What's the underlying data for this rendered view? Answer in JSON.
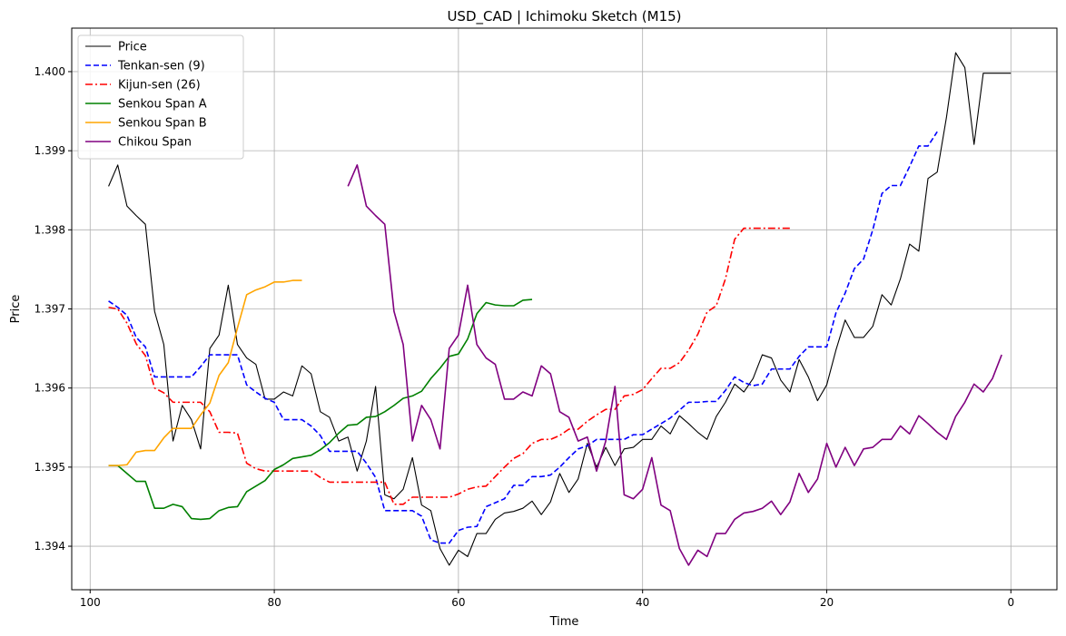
{
  "chart_data": {
    "type": "line",
    "title": "USD_CAD | Ichimoku Sketch (M15)",
    "xlabel": "Time",
    "ylabel": "Price",
    "xlim": [
      102,
      -5
    ],
    "ylim": [
      1.39345,
      1.40055
    ],
    "x_ticks": [
      100,
      80,
      60,
      40,
      20,
      0
    ],
    "y_ticks": [
      1.394,
      1.395,
      1.396,
      1.397,
      1.398,
      1.399,
      1.4
    ],
    "grid": true,
    "legend_position": "upper-left",
    "series": [
      {
        "name": "Price",
        "color": "#000000",
        "style": "solid",
        "x_start": 98,
        "x_step": -1,
        "values": [
          1.39855,
          1.39882,
          1.3983,
          1.39818,
          1.39807,
          1.39697,
          1.39655,
          1.39533,
          1.39578,
          1.3956,
          1.39523,
          1.3965,
          1.39667,
          1.3973,
          1.39655,
          1.39638,
          1.3963,
          1.39586,
          1.39586,
          1.39595,
          1.3959,
          1.39628,
          1.39618,
          1.3957,
          1.39563,
          1.39533,
          1.39538,
          1.39495,
          1.39533,
          1.39602,
          1.39465,
          1.3946,
          1.39472,
          1.39512,
          1.39452,
          1.39445,
          1.39397,
          1.39376,
          1.39395,
          1.39387,
          1.39416,
          1.39416,
          1.39434,
          1.39442,
          1.39444,
          1.39448,
          1.39457,
          1.3944,
          1.39456,
          1.39492,
          1.39468,
          1.39485,
          1.3953,
          1.395,
          1.39525,
          1.39502,
          1.39523,
          1.39525,
          1.39535,
          1.39535,
          1.39552,
          1.39542,
          1.39565,
          1.39555,
          1.39544,
          1.39535,
          1.39564,
          1.39582,
          1.39605,
          1.39595,
          1.39612,
          1.39642,
          1.39638,
          1.3961,
          1.39595,
          1.39636,
          1.39614,
          1.39584,
          1.39604,
          1.39648,
          1.39686,
          1.39664,
          1.39664,
          1.39678,
          1.39718,
          1.39705,
          1.39738,
          1.39782,
          1.39773,
          1.39865,
          1.39873,
          1.39942,
          1.40024,
          1.40005,
          1.39908,
          1.39998,
          1.39998,
          1.39998,
          1.39998
        ]
      },
      {
        "name": "Tenkan-sen (9)",
        "color": "#0000ff",
        "style": "dashed",
        "x_start": 98,
        "x_step": -1,
        "values": [
          1.3971,
          1.39702,
          1.39692,
          1.39664,
          1.39652,
          1.39614,
          1.39614,
          1.39614,
          1.39614,
          1.39614,
          1.39627,
          1.39642,
          1.39642,
          1.39642,
          1.39642,
          1.39604,
          1.39595,
          1.39587,
          1.39582,
          1.3956,
          1.3956,
          1.3956,
          1.39552,
          1.3954,
          1.3952,
          1.3952,
          1.3952,
          1.3952,
          1.39505,
          1.39487,
          1.39445,
          1.39445,
          1.39445,
          1.39445,
          1.39438,
          1.39408,
          1.39404,
          1.39404,
          1.3942,
          1.39424,
          1.39425,
          1.3945,
          1.39455,
          1.3946,
          1.39477,
          1.39477,
          1.39488,
          1.39488,
          1.3949,
          1.395,
          1.39512,
          1.39523,
          1.39527,
          1.39535,
          1.39535,
          1.39535,
          1.39535,
          1.39541,
          1.39541,
          1.39548,
          1.39555,
          1.39562,
          1.39572,
          1.39582,
          1.39582,
          1.39583,
          1.39583,
          1.39597,
          1.39614,
          1.39607,
          1.39603,
          1.39605,
          1.39624,
          1.39624,
          1.39624,
          1.3964,
          1.39652,
          1.39652,
          1.39652,
          1.39695,
          1.3972,
          1.39751,
          1.39763,
          1.398,
          1.39846,
          1.39856,
          1.39856,
          1.3988,
          1.39906,
          1.39906,
          1.39924
        ]
      },
      {
        "name": "Kijun-sen (26)",
        "color": "#ff0000",
        "style": "dashdot",
        "x_start": 98,
        "x_step": -1,
        "values": [
          1.39702,
          1.397,
          1.39682,
          1.39656,
          1.39641,
          1.396,
          1.39594,
          1.39582,
          1.39582,
          1.39582,
          1.39582,
          1.3957,
          1.39544,
          1.39544,
          1.39543,
          1.39505,
          1.39498,
          1.39495,
          1.39495,
          1.39495,
          1.39495,
          1.39495,
          1.39495,
          1.39487,
          1.39481,
          1.39481,
          1.39481,
          1.39481,
          1.39481,
          1.39481,
          1.39481,
          1.39453,
          1.39453,
          1.39462,
          1.39462,
          1.39462,
          1.39462,
          1.39462,
          1.39466,
          1.39472,
          1.39475,
          1.39476,
          1.39488,
          1.395,
          1.39511,
          1.39517,
          1.3953,
          1.39535,
          1.39535,
          1.3954,
          1.39548,
          1.39548,
          1.39558,
          1.39566,
          1.39573,
          1.39573,
          1.3959,
          1.39592,
          1.39598,
          1.39612,
          1.39625,
          1.39625,
          1.39632,
          1.39648,
          1.39668,
          1.39696,
          1.39704,
          1.39738,
          1.39788,
          1.39802,
          1.39802,
          1.39802,
          1.39802,
          1.39802,
          1.39802
        ]
      },
      {
        "name": "Senkou Span A",
        "color": "#008000",
        "style": "solid",
        "x_start": 98,
        "x_step": -1,
        "values": [
          1.39502,
          1.39502,
          1.39492,
          1.39482,
          1.39482,
          1.39448,
          1.39448,
          1.39453,
          1.3945,
          1.39435,
          1.39434,
          1.39435,
          1.39445,
          1.39449,
          1.3945,
          1.39469,
          1.39476,
          1.39483,
          1.39497,
          1.39503,
          1.39511,
          1.39513,
          1.39515,
          1.39522,
          1.39531,
          1.39543,
          1.39553,
          1.39554,
          1.39563,
          1.39564,
          1.3957,
          1.39578,
          1.39587,
          1.3959,
          1.39596,
          1.39612,
          1.39625,
          1.3964,
          1.39643,
          1.39662,
          1.39694,
          1.39708,
          1.39705,
          1.39704,
          1.39704,
          1.39711,
          1.39712
        ]
      },
      {
        "name": "Senkou Span B",
        "color": "#ffa500",
        "style": "solid",
        "x_start": 98,
        "x_step": -1,
        "values": [
          1.39502,
          1.39502,
          1.39503,
          1.39519,
          1.39521,
          1.39521,
          1.39537,
          1.39549,
          1.39549,
          1.39549,
          1.39566,
          1.39581,
          1.39616,
          1.39632,
          1.39676,
          1.39718,
          1.39724,
          1.39728,
          1.39734,
          1.39734,
          1.39736,
          1.39736
        ]
      },
      {
        "name": "Chikou Span",
        "color": "#800080",
        "style": "solid",
        "x_start": 72,
        "x_step": -1,
        "values": [
          1.39855,
          1.39882,
          1.3983,
          1.39818,
          1.39807,
          1.39697,
          1.39655,
          1.39533,
          1.39578,
          1.3956,
          1.39523,
          1.3965,
          1.39667,
          1.3973,
          1.39655,
          1.39638,
          1.3963,
          1.39586,
          1.39586,
          1.39595,
          1.3959,
          1.39628,
          1.39618,
          1.3957,
          1.39563,
          1.39533,
          1.39538,
          1.39495,
          1.39533,
          1.39602,
          1.39465,
          1.3946,
          1.39472,
          1.39512,
          1.39452,
          1.39445,
          1.39397,
          1.39376,
          1.39395,
          1.39387,
          1.39416,
          1.39416,
          1.39434,
          1.39442,
          1.39444,
          1.39448,
          1.39457,
          1.3944,
          1.39456,
          1.39492,
          1.39468,
          1.39485,
          1.3953,
          1.395,
          1.39525,
          1.39502,
          1.39523,
          1.39525,
          1.39535,
          1.39535,
          1.39552,
          1.39542,
          1.39565,
          1.39555,
          1.39544,
          1.39535,
          1.39564,
          1.39582,
          1.39605,
          1.39595,
          1.39612,
          1.39642
        ]
      }
    ]
  }
}
